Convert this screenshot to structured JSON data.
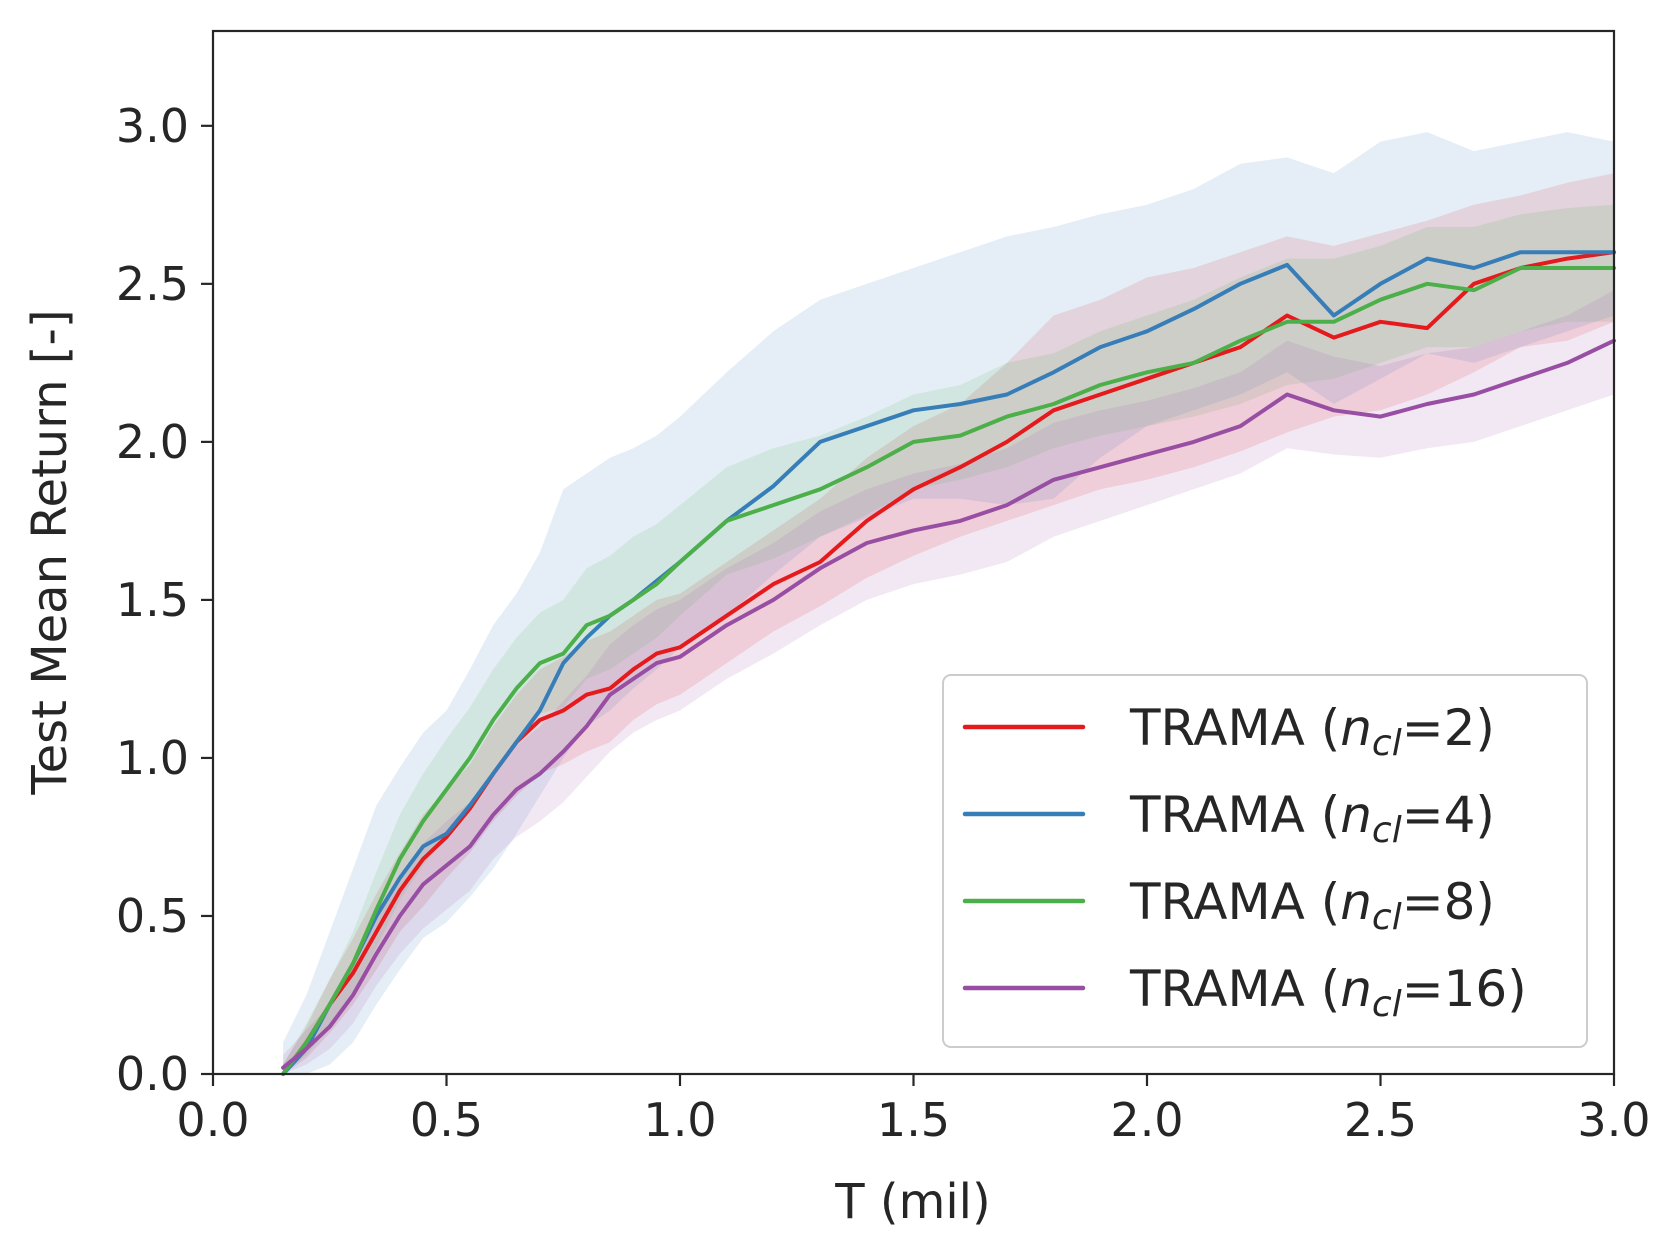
{
  "chart_data": {
    "type": "line",
    "title": "",
    "xlabel": "T (mil)",
    "ylabel": "Test Mean Return [-]",
    "xlim": [
      0.0,
      3.0
    ],
    "ylim": [
      0.0,
      3.3
    ],
    "xticks": [
      "0.0",
      "0.5",
      "1.0",
      "1.5",
      "2.0",
      "2.5",
      "3.0"
    ],
    "yticks": [
      "0.0",
      "0.5",
      "1.0",
      "1.5",
      "2.0",
      "2.5",
      "3.0"
    ],
    "grid": false,
    "legend_position": "bottom-right",
    "x": [
      0.15,
      0.2,
      0.25,
      0.3,
      0.35,
      0.4,
      0.45,
      0.5,
      0.55,
      0.6,
      0.65,
      0.7,
      0.75,
      0.8,
      0.85,
      0.9,
      0.95,
      1.0,
      1.1,
      1.2,
      1.3,
      1.4,
      1.5,
      1.6,
      1.7,
      1.8,
      1.9,
      2.0,
      2.1,
      2.2,
      2.3,
      2.4,
      2.5,
      2.6,
      2.7,
      2.8,
      2.9,
      3.0
    ],
    "series": [
      {
        "name": "TRAMA (n_cl=2)",
        "legend_label": "TRAMA (",
        "legend_sym": "n",
        "legend_sub": "cl",
        "legend_val": "=2)",
        "color": "#e41a1c",
        "values": [
          0.0,
          0.1,
          0.22,
          0.32,
          0.45,
          0.58,
          0.68,
          0.75,
          0.84,
          0.95,
          1.05,
          1.12,
          1.15,
          1.2,
          1.22,
          1.28,
          1.33,
          1.35,
          1.45,
          1.55,
          1.62,
          1.75,
          1.85,
          1.92,
          2.0,
          2.1,
          2.15,
          2.2,
          2.25,
          2.3,
          2.4,
          2.33,
          2.38,
          2.36,
          2.5,
          2.55,
          2.58,
          2.6
        ],
        "lower": [
          0.0,
          0.05,
          0.13,
          0.22,
          0.33,
          0.45,
          0.53,
          0.62,
          0.7,
          0.8,
          0.88,
          0.95,
          0.98,
          1.02,
          1.05,
          1.12,
          1.17,
          1.2,
          1.3,
          1.4,
          1.48,
          1.57,
          1.64,
          1.7,
          1.75,
          1.8,
          1.85,
          1.88,
          1.92,
          1.97,
          2.03,
          2.08,
          2.1,
          2.15,
          2.22,
          2.3,
          2.32,
          2.38
        ],
        "upper": [
          0.03,
          0.15,
          0.3,
          0.43,
          0.57,
          0.7,
          0.82,
          0.9,
          0.98,
          1.1,
          1.2,
          1.28,
          1.32,
          1.37,
          1.4,
          1.45,
          1.5,
          1.52,
          1.62,
          1.72,
          1.82,
          1.95,
          2.05,
          2.12,
          2.25,
          2.4,
          2.45,
          2.52,
          2.55,
          2.6,
          2.65,
          2.62,
          2.66,
          2.7,
          2.75,
          2.78,
          2.82,
          2.85
        ]
      },
      {
        "name": "TRAMA (n_cl=4)",
        "legend_label": "TRAMA (",
        "legend_sym": "n",
        "legend_sub": "cl",
        "legend_val": "=4)",
        "color": "#377eb8",
        "values": [
          0.0,
          0.08,
          0.22,
          0.35,
          0.5,
          0.62,
          0.72,
          0.76,
          0.85,
          0.95,
          1.05,
          1.15,
          1.3,
          1.38,
          1.45,
          1.5,
          1.56,
          1.62,
          1.75,
          1.86,
          2.0,
          2.05,
          2.1,
          2.12,
          2.15,
          2.22,
          2.3,
          2.35,
          2.42,
          2.5,
          2.56,
          2.4,
          2.5,
          2.58,
          2.55,
          2.6,
          2.6,
          2.6
        ],
        "lower": [
          0.0,
          0.0,
          0.03,
          0.1,
          0.22,
          0.33,
          0.43,
          0.48,
          0.56,
          0.65,
          0.76,
          0.88,
          1.0,
          1.1,
          1.15,
          1.22,
          1.28,
          1.35,
          1.45,
          1.58,
          1.7,
          1.76,
          1.82,
          1.82,
          1.8,
          1.82,
          1.95,
          2.05,
          2.1,
          2.15,
          2.22,
          2.12,
          2.2,
          2.28,
          2.25,
          2.3,
          2.35,
          2.4
        ],
        "upper": [
          0.1,
          0.25,
          0.45,
          0.65,
          0.85,
          0.97,
          1.08,
          1.15,
          1.28,
          1.42,
          1.52,
          1.65,
          1.85,
          1.9,
          1.95,
          1.98,
          2.02,
          2.08,
          2.22,
          2.35,
          2.45,
          2.5,
          2.55,
          2.6,
          2.65,
          2.68,
          2.72,
          2.75,
          2.8,
          2.88,
          2.9,
          2.85,
          2.95,
          2.98,
          2.92,
          2.95,
          2.98,
          2.95
        ]
      },
      {
        "name": "TRAMA (n_cl=8)",
        "legend_label": "TRAMA (",
        "legend_sym": "n",
        "legend_sub": "cl",
        "legend_val": "=8)",
        "color": "#4daf4a",
        "values": [
          0.0,
          0.1,
          0.22,
          0.35,
          0.52,
          0.68,
          0.8,
          0.9,
          1.0,
          1.12,
          1.22,
          1.3,
          1.33,
          1.42,
          1.45,
          1.5,
          1.55,
          1.62,
          1.75,
          1.8,
          1.85,
          1.92,
          2.0,
          2.02,
          2.08,
          2.12,
          2.18,
          2.22,
          2.25,
          2.32,
          2.38,
          2.38,
          2.45,
          2.5,
          2.48,
          2.55,
          2.55,
          2.55
        ],
        "lower": [
          0.0,
          0.06,
          0.15,
          0.26,
          0.4,
          0.55,
          0.66,
          0.75,
          0.85,
          0.96,
          1.06,
          1.14,
          1.16,
          1.25,
          1.28,
          1.33,
          1.38,
          1.45,
          1.58,
          1.63,
          1.7,
          1.77,
          1.85,
          1.88,
          1.92,
          1.98,
          2.02,
          2.05,
          2.08,
          2.12,
          2.18,
          2.2,
          2.25,
          2.3,
          2.3,
          2.35,
          2.38,
          2.38
        ],
        "upper": [
          0.03,
          0.16,
          0.3,
          0.45,
          0.64,
          0.82,
          0.95,
          1.06,
          1.16,
          1.28,
          1.38,
          1.46,
          1.5,
          1.6,
          1.64,
          1.7,
          1.74,
          1.8,
          1.92,
          1.98,
          2.02,
          2.08,
          2.15,
          2.18,
          2.25,
          2.28,
          2.35,
          2.4,
          2.45,
          2.52,
          2.58,
          2.58,
          2.62,
          2.68,
          2.68,
          2.72,
          2.74,
          2.75
        ]
      },
      {
        "name": "TRAMA (n_cl=16)",
        "legend_label": "TRAMA (",
        "legend_sym": "n",
        "legend_sub": "cl",
        "legend_val": "=16)",
        "color": "#984ea3",
        "values": [
          0.02,
          0.08,
          0.15,
          0.25,
          0.38,
          0.5,
          0.6,
          0.66,
          0.72,
          0.82,
          0.9,
          0.95,
          1.02,
          1.1,
          1.2,
          1.25,
          1.3,
          1.32,
          1.42,
          1.5,
          1.6,
          1.68,
          1.72,
          1.75,
          1.8,
          1.88,
          1.92,
          1.96,
          2.0,
          2.05,
          2.15,
          2.1,
          2.08,
          2.12,
          2.15,
          2.2,
          2.25,
          2.32
        ],
        "lower": [
          0.0,
          0.03,
          0.08,
          0.16,
          0.28,
          0.38,
          0.46,
          0.52,
          0.58,
          0.68,
          0.75,
          0.8,
          0.86,
          0.94,
          1.02,
          1.08,
          1.12,
          1.15,
          1.25,
          1.33,
          1.42,
          1.5,
          1.55,
          1.58,
          1.62,
          1.7,
          1.75,
          1.8,
          1.85,
          1.9,
          1.98,
          1.96,
          1.95,
          1.98,
          2.0,
          2.05,
          2.1,
          2.15
        ],
        "upper": [
          0.06,
          0.14,
          0.22,
          0.34,
          0.5,
          0.62,
          0.73,
          0.8,
          0.86,
          0.96,
          1.04,
          1.1,
          1.18,
          1.26,
          1.36,
          1.42,
          1.47,
          1.5,
          1.6,
          1.68,
          1.78,
          1.85,
          1.9,
          1.93,
          1.98,
          2.06,
          2.1,
          2.13,
          2.17,
          2.22,
          2.32,
          2.27,
          2.24,
          2.28,
          2.3,
          2.35,
          2.4,
          2.48
        ]
      }
    ]
  }
}
